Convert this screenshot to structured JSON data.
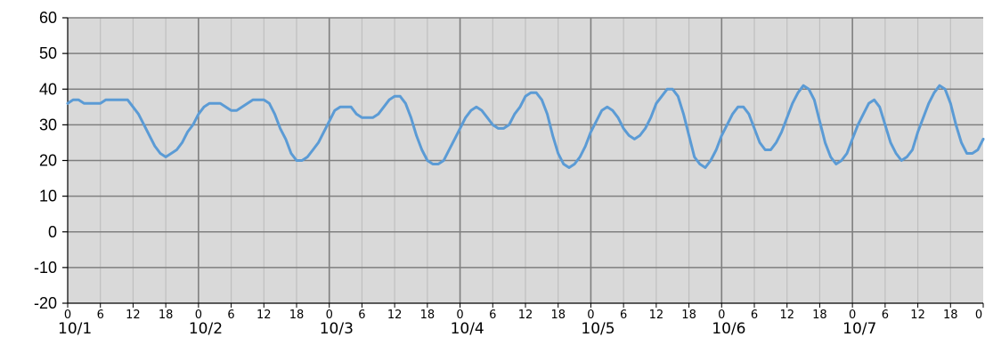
{
  "chart_data": {
    "type": "line",
    "title": "",
    "xlabel": "",
    "ylabel": "",
    "ylim": [
      -20,
      60
    ],
    "yticks": [
      -20,
      -10,
      0,
      10,
      20,
      30,
      40,
      50,
      60
    ],
    "ytick_labels": [
      "-20",
      "-10",
      "0",
      "10",
      "20",
      "30",
      "40",
      "50",
      "60"
    ],
    "x_unit": "hours",
    "xlim": [
      0,
      168
    ],
    "hour_tick_labels": [
      "0",
      "6",
      "12",
      "18"
    ],
    "day_labels": [
      "10/1",
      "10/2",
      "10/3",
      "10/4",
      "10/5",
      "10/6",
      "10/7"
    ],
    "final_tick_label": "0",
    "grid": true,
    "legend": "none",
    "colors": {
      "line": "#5b9bd5",
      "plot_bg": "#d9d9d9",
      "minor_grid": "#bfbfbf",
      "major_grid": "#7f7f7f",
      "axis": "#000000"
    },
    "series": [
      {
        "points": [
          [
            0,
            36
          ],
          [
            1,
            37
          ],
          [
            2,
            37
          ],
          [
            3,
            36
          ],
          [
            4,
            36
          ],
          [
            5,
            36
          ],
          [
            6,
            36
          ],
          [
            7,
            37
          ],
          [
            8,
            37
          ],
          [
            9,
            37
          ],
          [
            10,
            37
          ],
          [
            11,
            37
          ],
          [
            12,
            35
          ],
          [
            13,
            33
          ],
          [
            14,
            30
          ],
          [
            15,
            27
          ],
          [
            16,
            24
          ],
          [
            17,
            22
          ],
          [
            18,
            21
          ],
          [
            19,
            22
          ],
          [
            20,
            23
          ],
          [
            21,
            25
          ],
          [
            22,
            28
          ],
          [
            23,
            30
          ],
          [
            24,
            33
          ],
          [
            25,
            35
          ],
          [
            26,
            36
          ],
          [
            27,
            36
          ],
          [
            28,
            36
          ],
          [
            29,
            35
          ],
          [
            30,
            34
          ],
          [
            31,
            34
          ],
          [
            32,
            35
          ],
          [
            33,
            36
          ],
          [
            34,
            37
          ],
          [
            35,
            37
          ],
          [
            36,
            37
          ],
          [
            37,
            36
          ],
          [
            38,
            33
          ],
          [
            39,
            29
          ],
          [
            40,
            26
          ],
          [
            41,
            22
          ],
          [
            42,
            20
          ],
          [
            43,
            20
          ],
          [
            44,
            21
          ],
          [
            45,
            23
          ],
          [
            46,
            25
          ],
          [
            47,
            28
          ],
          [
            48,
            31
          ],
          [
            49,
            34
          ],
          [
            50,
            35
          ],
          [
            51,
            35
          ],
          [
            52,
            35
          ],
          [
            53,
            33
          ],
          [
            54,
            32
          ],
          [
            55,
            32
          ],
          [
            56,
            32
          ],
          [
            57,
            33
          ],
          [
            58,
            35
          ],
          [
            59,
            37
          ],
          [
            60,
            38
          ],
          [
            61,
            38
          ],
          [
            62,
            36
          ],
          [
            63,
            32
          ],
          [
            64,
            27
          ],
          [
            65,
            23
          ],
          [
            66,
            20
          ],
          [
            67,
            19
          ],
          [
            68,
            19
          ],
          [
            69,
            20
          ],
          [
            70,
            23
          ],
          [
            71,
            26
          ],
          [
            72,
            29
          ],
          [
            73,
            32
          ],
          [
            74,
            34
          ],
          [
            75,
            35
          ],
          [
            76,
            34
          ],
          [
            77,
            32
          ],
          [
            78,
            30
          ],
          [
            79,
            29
          ],
          [
            80,
            29
          ],
          [
            81,
            30
          ],
          [
            82,
            33
          ],
          [
            83,
            35
          ],
          [
            84,
            38
          ],
          [
            85,
            39
          ],
          [
            86,
            39
          ],
          [
            87,
            37
          ],
          [
            88,
            33
          ],
          [
            89,
            27
          ],
          [
            90,
            22
          ],
          [
            91,
            19
          ],
          [
            92,
            18
          ],
          [
            93,
            19
          ],
          [
            94,
            21
          ],
          [
            95,
            24
          ],
          [
            96,
            28
          ],
          [
            97,
            31
          ],
          [
            98,
            34
          ],
          [
            99,
            35
          ],
          [
            100,
            34
          ],
          [
            101,
            32
          ],
          [
            102,
            29
          ],
          [
            103,
            27
          ],
          [
            104,
            26
          ],
          [
            105,
            27
          ],
          [
            106,
            29
          ],
          [
            107,
            32
          ],
          [
            108,
            36
          ],
          [
            109,
            38
          ],
          [
            110,
            40
          ],
          [
            111,
            40
          ],
          [
            112,
            38
          ],
          [
            113,
            33
          ],
          [
            114,
            27
          ],
          [
            115,
            21
          ],
          [
            116,
            19
          ],
          [
            117,
            18
          ],
          [
            118,
            20
          ],
          [
            119,
            23
          ],
          [
            120,
            27
          ],
          [
            121,
            30
          ],
          [
            122,
            33
          ],
          [
            123,
            35
          ],
          [
            124,
            35
          ],
          [
            125,
            33
          ],
          [
            126,
            29
          ],
          [
            127,
            25
          ],
          [
            128,
            23
          ],
          [
            129,
            23
          ],
          [
            130,
            25
          ],
          [
            131,
            28
          ],
          [
            132,
            32
          ],
          [
            133,
            36
          ],
          [
            134,
            39
          ],
          [
            135,
            41
          ],
          [
            136,
            40
          ],
          [
            137,
            37
          ],
          [
            138,
            31
          ],
          [
            139,
            25
          ],
          [
            140,
            21
          ],
          [
            141,
            19
          ],
          [
            142,
            20
          ],
          [
            143,
            22
          ],
          [
            144,
            26
          ],
          [
            145,
            30
          ],
          [
            146,
            33
          ],
          [
            147,
            36
          ],
          [
            148,
            37
          ],
          [
            149,
            35
          ],
          [
            150,
            30
          ],
          [
            151,
            25
          ],
          [
            152,
            22
          ],
          [
            153,
            20
          ],
          [
            154,
            21
          ],
          [
            155,
            23
          ],
          [
            156,
            28
          ],
          [
            157,
            32
          ],
          [
            158,
            36
          ],
          [
            159,
            39
          ],
          [
            160,
            41
          ],
          [
            161,
            40
          ],
          [
            162,
            36
          ],
          [
            163,
            30
          ],
          [
            164,
            25
          ],
          [
            165,
            22
          ],
          [
            166,
            22
          ],
          [
            167,
            23
          ],
          [
            168,
            26
          ]
        ]
      }
    ]
  }
}
